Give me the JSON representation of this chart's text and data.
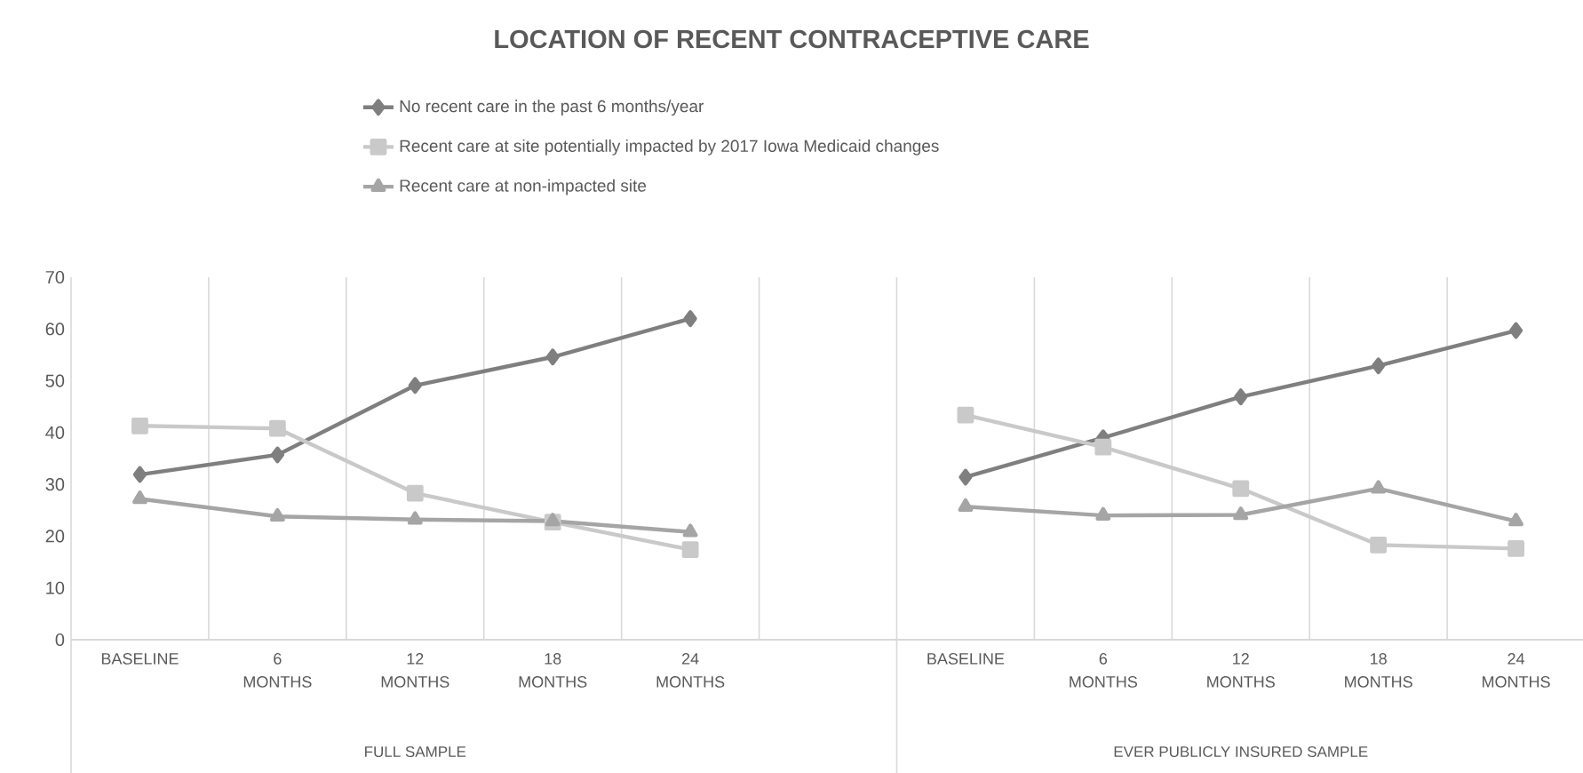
{
  "chart_data": {
    "type": "line",
    "title": "LOCATION OF RECENT CONTRACEPTIVE CARE",
    "categories": [
      "BASELINE",
      "6 MONTHS",
      "12 MONTHS",
      "18 MONTHS",
      "24 MONTHS",
      null,
      "BASELINE",
      "6 MONTHS",
      "12 MONTHS",
      "18 MONTHS",
      "24 MONTHS"
    ],
    "series": [
      {
        "name": "No recent care in the past 6 months/year",
        "color": "#7f7f7f",
        "marker": "diamond",
        "values": [
          31.9,
          35.7,
          49.1,
          54.6,
          62.0,
          null,
          31.4,
          39.0,
          46.9,
          52.9,
          59.7
        ]
      },
      {
        "name": "Recent care at site potentially impacted by 2017 Iowa Medicaid changes",
        "color": "#c9c9c9",
        "marker": "square",
        "values": [
          41.3,
          40.8,
          28.3,
          22.7,
          17.4,
          null,
          43.4,
          37.2,
          29.2,
          18.3,
          17.6
        ]
      },
      {
        "name": "Recent care at non-impacted site",
        "color": "#a5a5a5",
        "marker": "triangle",
        "values": [
          27.2,
          23.8,
          23.2,
          22.9,
          20.8,
          null,
          25.7,
          24.0,
          24.1,
          29.2,
          22.9
        ]
      }
    ],
    "ylim": [
      0,
      70
    ],
    "yticks": [
      0,
      10,
      20,
      30,
      40,
      50,
      60,
      70
    ],
    "grid": "x",
    "legend": "top",
    "annotations": [
      "FULL SAMPLE",
      "EVER PUBLICLY INSURED SAMPLE"
    ]
  }
}
